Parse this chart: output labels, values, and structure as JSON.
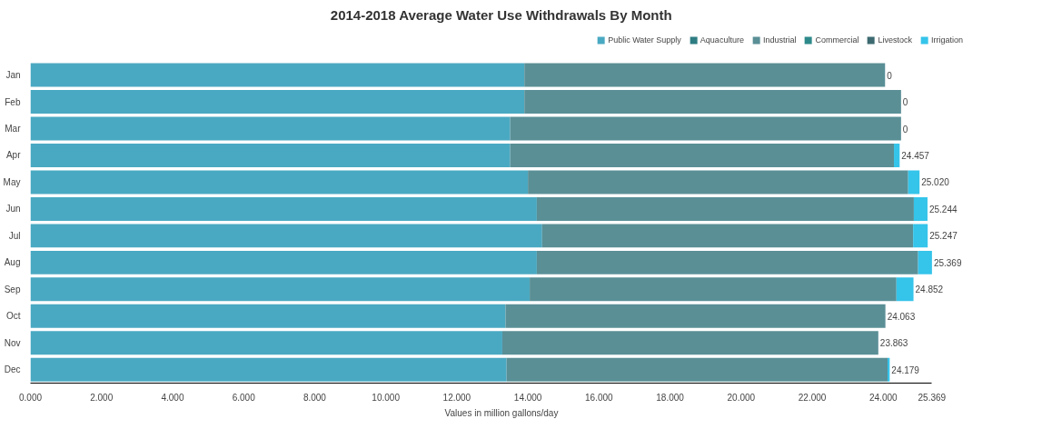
{
  "chart_data": {
    "type": "bar",
    "orientation": "horizontal",
    "stacked": true,
    "title": "2014-2018 Average Water Use Withdrawals By Month",
    "xlabel": "Values in million gallons/day",
    "categories": [
      "Jan",
      "Feb",
      "Mar",
      "Apr",
      "May",
      "Jun",
      "Jul",
      "Aug",
      "Sep",
      "Oct",
      "Nov",
      "Dec"
    ],
    "series": [
      {
        "name": "Public Water Supply",
        "color": "#4aa9c2",
        "values": [
          13.9,
          13.9,
          13.5,
          13.5,
          14.0,
          14.25,
          14.4,
          14.25,
          14.05,
          13.37,
          13.28,
          13.4
        ]
      },
      {
        "name": "Aquaculture",
        "color": "#2e7d82",
        "values": [
          0,
          0,
          0,
          0,
          0,
          0,
          0,
          0,
          0,
          0,
          0,
          0
        ]
      },
      {
        "name": "Industrial",
        "color": "#5a8f96",
        "values": [
          10.15,
          10.6,
          11.0,
          10.8,
          10.7,
          10.61,
          10.44,
          10.73,
          10.32,
          10.69,
          10.58,
          10.72
        ]
      },
      {
        "name": "Commercial",
        "color": "#2e8a8a",
        "values": [
          0,
          0,
          0,
          0,
          0,
          0,
          0,
          0,
          0,
          0,
          0,
          0
        ]
      },
      {
        "name": "Livestock",
        "color": "#3c6a70",
        "values": [
          0,
          0,
          0,
          0,
          0,
          0,
          0,
          0,
          0,
          0,
          0,
          0
        ]
      },
      {
        "name": "Irrigation",
        "color": "#35c4ea",
        "values": [
          0,
          0,
          0,
          0.16,
          0.32,
          0.384,
          0.41,
          0.39,
          0.48,
          0,
          0,
          0.06
        ],
        "value_labels": [
          "0",
          "0",
          "0",
          null,
          null,
          null,
          null,
          null,
          null,
          null,
          null,
          null
        ]
      }
    ],
    "totals": [
      null,
      null,
      null,
      "24.457",
      "25.020",
      "25.244",
      "25.247",
      "25.369",
      "24.852",
      "24.063",
      "23.863",
      "24.179"
    ],
    "xlim": [
      0,
      25.369
    ],
    "xticks": [
      {
        "value": 0,
        "label": "0.000"
      },
      {
        "value": 2,
        "label": "2.000"
      },
      {
        "value": 4,
        "label": "4.000"
      },
      {
        "value": 6,
        "label": "6.000"
      },
      {
        "value": 8,
        "label": "8.000"
      },
      {
        "value": 10,
        "label": "10.000"
      },
      {
        "value": 12,
        "label": "12.000"
      },
      {
        "value": 14,
        "label": "14.000"
      },
      {
        "value": 16,
        "label": "16.000"
      },
      {
        "value": 18,
        "label": "18.000"
      },
      {
        "value": 20,
        "label": "20.000"
      },
      {
        "value": 22,
        "label": "22.000"
      },
      {
        "value": 24,
        "label": "24.000"
      },
      {
        "value": 25.369,
        "label": "25.369"
      }
    ],
    "grid": false,
    "legend": "top right"
  }
}
